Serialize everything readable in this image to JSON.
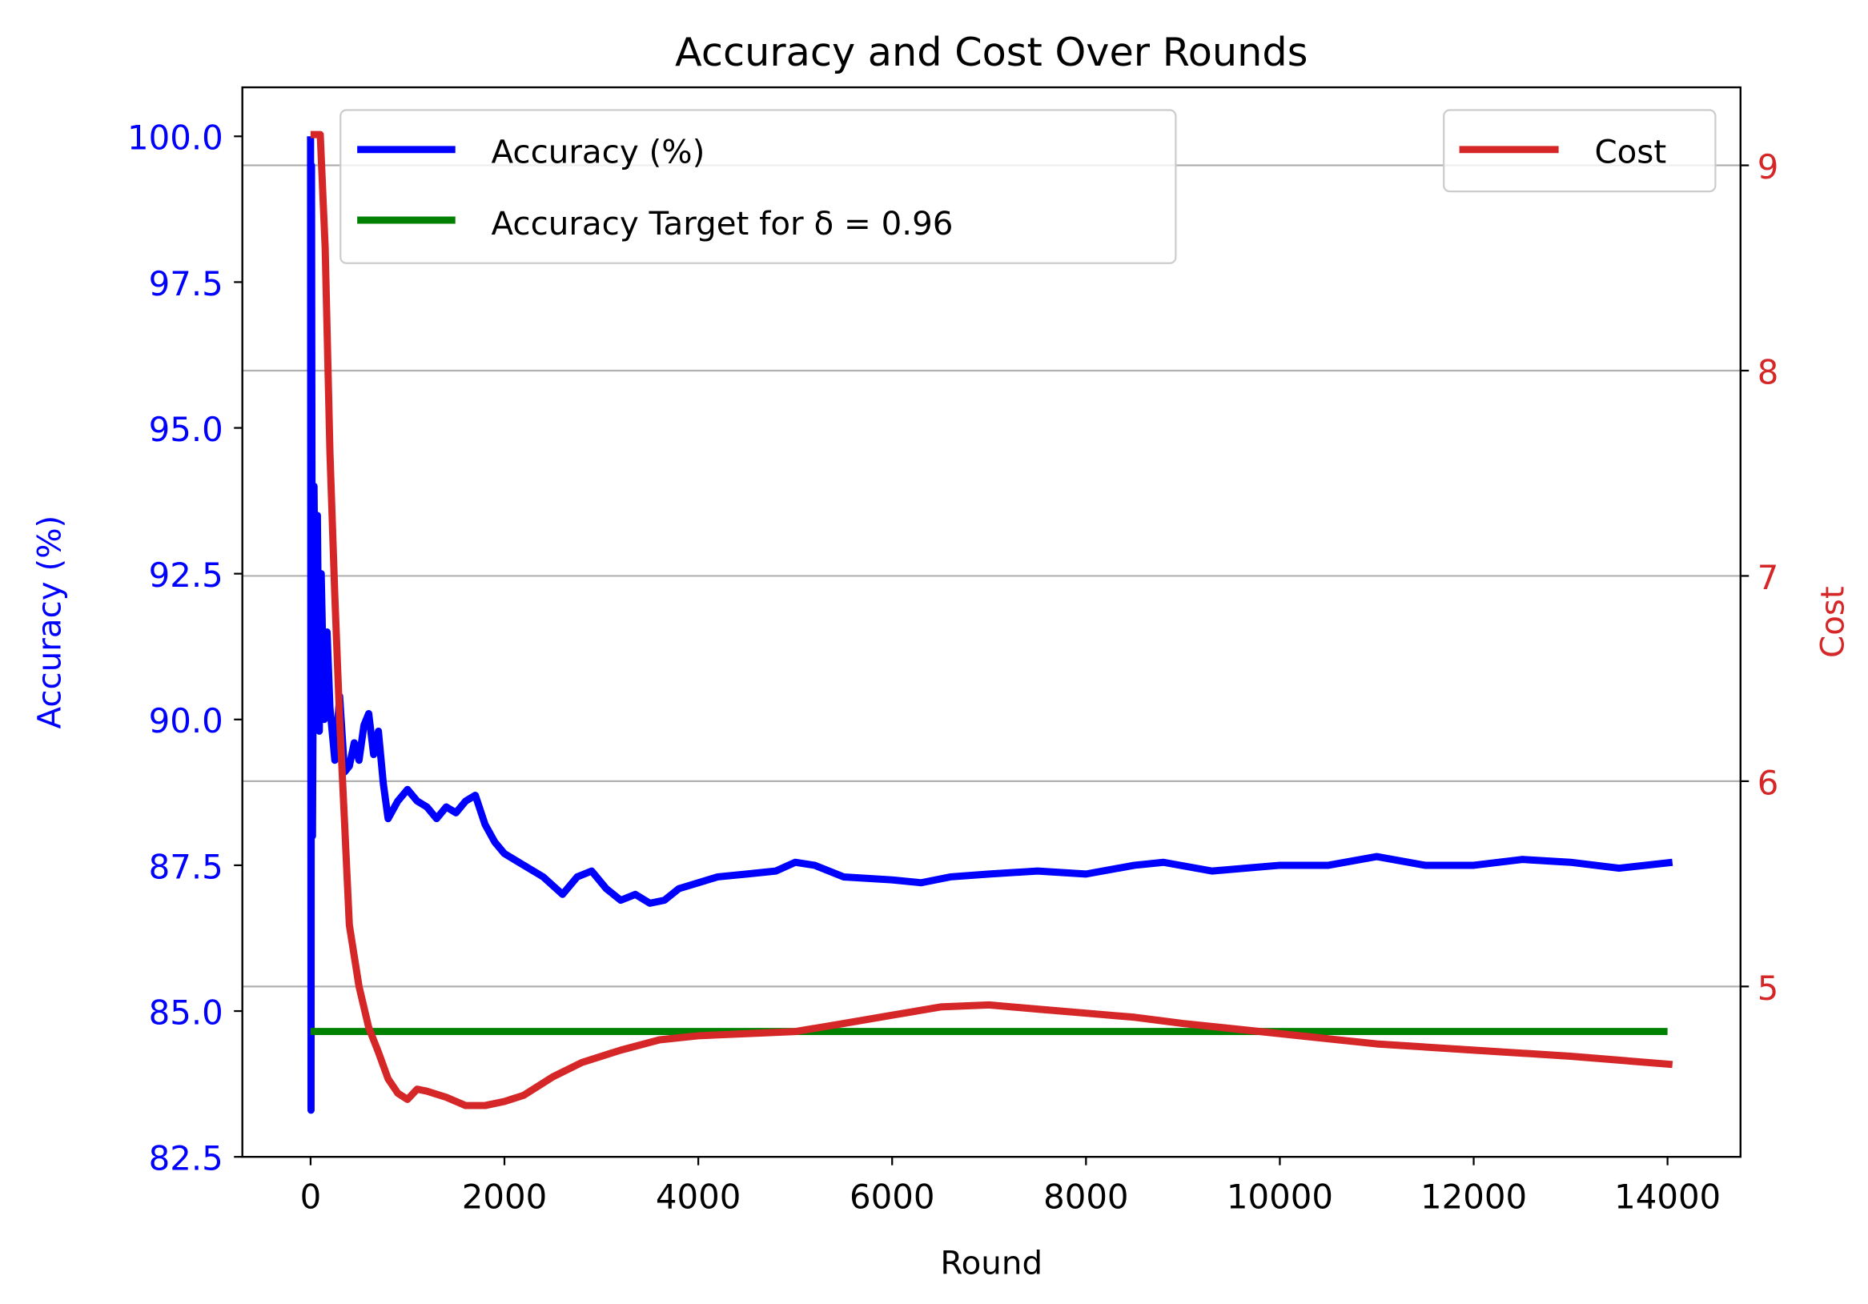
{
  "chart_data": {
    "type": "line",
    "title": "Accuracy and Cost Over Rounds",
    "xlabel": "Round",
    "ylabel_left": "Accuracy (%)",
    "ylabel_right": "Cost",
    "xlim": [
      -704,
      14753
    ],
    "ylim_left": [
      82.5,
      100.84
    ],
    "ylim_right": [
      4.17,
      9.38
    ],
    "x_ticks": [
      "0",
      "2000",
      "4000",
      "6000",
      "8000",
      "10000",
      "12000",
      "14000"
    ],
    "y_left_ticks": [
      "82.5",
      "85.0",
      "87.5",
      "90.0",
      "92.5",
      "95.0",
      "97.5",
      "100.0"
    ],
    "y_right_ticks": [
      "5",
      "6",
      "7",
      "8",
      "9"
    ],
    "grid": "horizontal lines at right-axis ticks",
    "colors": {
      "accuracy": "#0000ff",
      "target": "#008000",
      "cost": "#d62728",
      "left_axis": "#0000ff",
      "right_axis": "#d62728"
    },
    "legend_left": {
      "placement": "upper-left",
      "entries": [
        "Accuracy (%)",
        "Accuracy Target for δ = 0.96"
      ]
    },
    "legend_right": {
      "placement": "upper-right",
      "entries": [
        "Cost"
      ]
    },
    "series": [
      {
        "name": "Accuracy (%)",
        "axis": "left",
        "x": [
          0,
          5,
          10,
          20,
          35,
          50,
          70,
          90,
          110,
          140,
          170,
          200,
          250,
          300,
          350,
          400,
          450,
          500,
          550,
          600,
          650,
          700,
          750,
          800,
          900,
          1000,
          1100,
          1200,
          1300,
          1400,
          1500,
          1600,
          1700,
          1800,
          1900,
          2000,
          2200,
          2400,
          2600,
          2750,
          2900,
          3050,
          3200,
          3350,
          3500,
          3650,
          3800,
          4000,
          4200,
          4500,
          4800,
          5000,
          5200,
          5500,
          6000,
          6300,
          6600,
          7000,
          7500,
          8000,
          8500,
          8800,
          9300,
          10000,
          10500,
          11000,
          11500,
          12000,
          12500,
          13000,
          13500,
          14050
        ],
        "y": [
          100.0,
          83.3,
          99.5,
          88.0,
          94.0,
          91.0,
          93.5,
          89.8,
          92.5,
          90.0,
          91.5,
          90.2,
          89.3,
          90.4,
          89.1,
          89.2,
          89.6,
          89.3,
          89.9,
          90.1,
          89.4,
          89.8,
          88.9,
          88.3,
          88.6,
          88.8,
          88.6,
          88.5,
          88.3,
          88.5,
          88.4,
          88.6,
          88.7,
          88.2,
          87.9,
          87.7,
          87.5,
          87.3,
          87.0,
          87.3,
          87.4,
          87.1,
          86.9,
          87.0,
          86.85,
          86.9,
          87.1,
          87.2,
          87.3,
          87.35,
          87.4,
          87.55,
          87.5,
          87.3,
          87.25,
          87.2,
          87.3,
          87.35,
          87.4,
          87.35,
          87.5,
          87.55,
          87.4,
          87.5,
          87.5,
          87.65,
          87.5,
          87.5,
          87.6,
          87.55,
          87.45,
          87.55
        ]
      },
      {
        "name": "Accuracy Target for δ = 0.96",
        "axis": "left",
        "x": [
          0,
          14000
        ],
        "y": [
          84.65,
          84.65
        ]
      },
      {
        "name": "Cost",
        "axis": "right",
        "x": [
          0,
          100,
          150,
          200,
          250,
          300,
          350,
          400,
          500,
          600,
          700,
          800,
          900,
          1000,
          1100,
          1200,
          1400,
          1600,
          1800,
          2000,
          2200,
          2500,
          2800,
          3200,
          3600,
          4000,
          4500,
          5000,
          5500,
          6000,
          6500,
          7000,
          7500,
          8000,
          8500,
          9000,
          10000,
          11000,
          12000,
          13000,
          14050
        ],
        "y": [
          9.15,
          9.15,
          8.6,
          7.6,
          6.9,
          6.3,
          5.8,
          5.3,
          5.0,
          4.8,
          4.68,
          4.55,
          4.48,
          4.45,
          4.5,
          4.49,
          4.46,
          4.42,
          4.42,
          4.44,
          4.47,
          4.56,
          4.63,
          4.69,
          4.74,
          4.76,
          4.77,
          4.78,
          4.82,
          4.86,
          4.9,
          4.91,
          4.89,
          4.87,
          4.85,
          4.82,
          4.77,
          4.72,
          4.69,
          4.66,
          4.62
        ]
      }
    ]
  }
}
